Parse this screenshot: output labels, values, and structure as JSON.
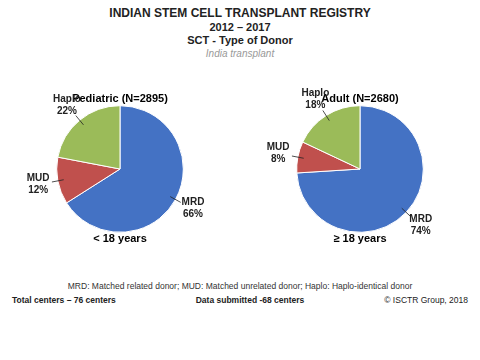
{
  "title": "INDIAN STEM CELL TRANSPLANT REGISTRY",
  "subtitle": [
    "2012 – 2017",
    "SCT - Type of Donor"
  ],
  "annotations": [
    "India  transplant",
    "MRD: Matched related donor; MUD: Matched unrelated donor; Haplo: Haplo-identical donor",
    "Total centers – 76 centers",
    "Data submitted -68 centers",
    "© ISCTR Group, 2018"
  ],
  "chart_data": [
    {
      "type": "pie",
      "title": "Pediatric (N=2895)",
      "subtitle": "< 18 years",
      "categories": [
        "MRD",
        "MUD",
        "Haplo"
      ],
      "values": [
        66,
        12,
        22
      ],
      "value_labels": [
        "66%",
        "12%",
        "22%"
      ],
      "colors": [
        "#4472C4",
        "#C0504D",
        "#9BBB59"
      ],
      "data_labels": true
    },
    {
      "type": "pie",
      "title": "Adult (N=2680)",
      "subtitle": "≥ 18 years",
      "categories": [
        "MRD",
        "MUD",
        "Haplo"
      ],
      "values": [
        74,
        8,
        18
      ],
      "value_labels": [
        "74%",
        "8%",
        "18%"
      ],
      "colors": [
        "#4472C4",
        "#C0504D",
        "#9BBB59"
      ],
      "data_labels": true
    }
  ]
}
